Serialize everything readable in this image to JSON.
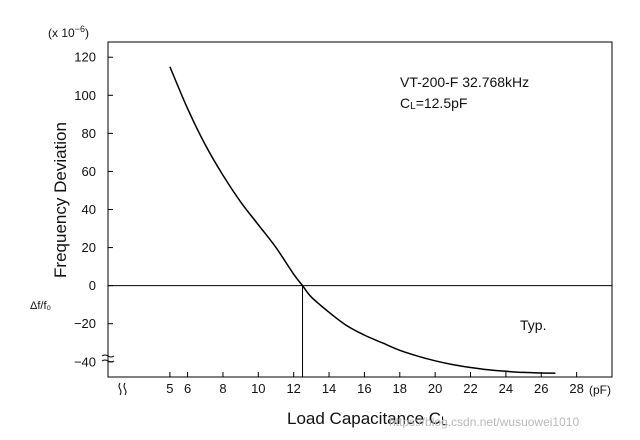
{
  "chart_data": {
    "type": "line",
    "title": "",
    "xlabel": "Load Capacitance CL",
    "xlabel_parts": {
      "main": "Load Capacitance C",
      "sub": "L"
    },
    "xunit": "(pF)",
    "ylabel": "Frequency Deviation",
    "ylabel_symbol": "Δf/f₀",
    "yunit": "(x 10⁻⁶)",
    "yunit_parts": {
      "base": "(x 10",
      "exp": "−6",
      "close": ")"
    },
    "xlim": [
      1.5,
      30
    ],
    "ylim": [
      -48,
      128
    ],
    "axis_break_marks": "≈",
    "xticks": [
      5,
      6,
      8,
      10,
      12,
      14,
      16,
      18,
      20,
      22,
      24,
      26,
      28
    ],
    "yticks": [
      120,
      100,
      80,
      60,
      40,
      20,
      0,
      -20,
      -40
    ],
    "grid": false,
    "legend": "none",
    "series": [
      {
        "name": "Typ.",
        "x": [
          5,
          6,
          7,
          8,
          9,
          10,
          11,
          12,
          12.5,
          13,
          14,
          15,
          16,
          17,
          18,
          19,
          20,
          21,
          22,
          23,
          24,
          25,
          26,
          26.8
        ],
        "y": [
          115,
          93,
          74,
          58,
          44,
          32,
          20,
          6,
          0,
          -6,
          -14,
          -21,
          -26,
          -30,
          -34,
          -37,
          -39.5,
          -41.5,
          -43,
          -44.2,
          -45,
          -45.6,
          -45.9,
          -46
        ]
      }
    ],
    "reference_lines": {
      "y": 0,
      "x": 12.5
    },
    "annotations": {
      "model": "VT-200-F  32.768kHz",
      "load_parts": {
        "main": "C",
        "sub": "L",
        "rest": "=12.5pF"
      },
      "typ": "Typ."
    },
    "line_color": "#000000"
  },
  "watermark": "https://blog.csdn.net/wusuowei1010"
}
